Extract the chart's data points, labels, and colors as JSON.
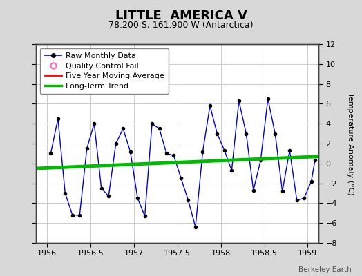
{
  "title": "LITTLE  AMERICA V",
  "subtitle": "78.200 S, 161.900 W (Antarctica)",
  "ylabel": "Temperature Anomaly (°C)",
  "credit": "Berkeley Earth",
  "xlim": [
    1955.875,
    1959.125
  ],
  "ylim": [
    -8,
    12
  ],
  "yticks": [
    -8,
    -6,
    -4,
    -2,
    0,
    2,
    4,
    6,
    8,
    10,
    12
  ],
  "xticks": [
    1956,
    1956.5,
    1957,
    1957.5,
    1958,
    1958.5,
    1959
  ],
  "bg_color": "#d8d8d8",
  "plot_bg_color": "#ffffff",
  "raw_x": [
    1956.042,
    1956.125,
    1956.208,
    1956.292,
    1956.375,
    1956.458,
    1956.542,
    1956.625,
    1956.708,
    1956.792,
    1956.875,
    1956.958,
    1957.042,
    1957.125,
    1957.208,
    1957.292,
    1957.375,
    1957.458,
    1957.542,
    1957.625,
    1957.708,
    1957.792,
    1957.875,
    1957.958,
    1958.042,
    1958.125,
    1958.208,
    1958.292,
    1958.375,
    1958.458,
    1958.542,
    1958.625,
    1958.708,
    1958.792,
    1958.875,
    1958.958,
    1959.042,
    1959.083
  ],
  "raw_y": [
    1.0,
    4.5,
    -3.0,
    -5.2,
    -5.2,
    1.5,
    4.0,
    -2.5,
    -3.3,
    2.0,
    3.5,
    1.2,
    -3.5,
    -5.3,
    4.0,
    3.5,
    1.0,
    0.8,
    -1.5,
    -3.7,
    -6.4,
    1.2,
    5.8,
    3.0,
    1.3,
    -0.7,
    6.3,
    3.0,
    -2.7,
    0.3,
    6.5,
    3.0,
    -2.8,
    1.3,
    -3.7,
    -3.5,
    -1.8,
    0.3
  ],
  "trend_x": [
    1955.875,
    1959.125
  ],
  "trend_y": [
    -0.5,
    0.7
  ],
  "line_color": "#0000cc",
  "marker_color": "#000000",
  "trend_color": "#00bb00",
  "ma_color": "#ff0000",
  "qc_marker_color": "#ff69b4",
  "title_fontsize": 13,
  "subtitle_fontsize": 9,
  "axis_fontsize": 8,
  "legend_fontsize": 8
}
